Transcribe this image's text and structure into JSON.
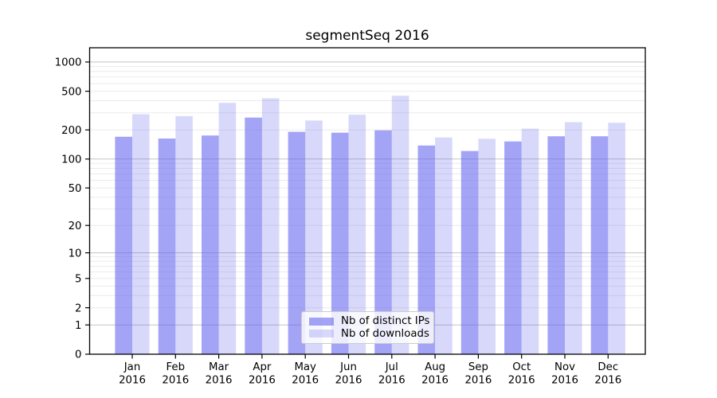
{
  "chart_data": {
    "type": "bar",
    "title": "segmentSeq 2016",
    "categories": [
      "Jan",
      "Feb",
      "Mar",
      "Apr",
      "May",
      "Jun",
      "Jul",
      "Aug",
      "Sep",
      "Oct",
      "Nov",
      "Dec"
    ],
    "category_year": "2016",
    "series": [
      {
        "name": "Nb of distinct IPs",
        "fill": "rgba(98,98,239,0.58)",
        "values": [
          170,
          163,
          175,
          268,
          191,
          187,
          198,
          138,
          121,
          152,
          172,
          172
        ]
      },
      {
        "name": "Nb of downloads",
        "fill": "rgba(98,98,239,0.25)",
        "values": [
          290,
          277,
          380,
          423,
          250,
          287,
          450,
          167,
          162,
          206,
          240,
          237
        ]
      }
    ],
    "yscale": "log1p",
    "ylim": [
      0,
      1400
    ],
    "yticks": [
      0,
      1,
      2,
      5,
      10,
      20,
      50,
      100,
      200,
      500,
      1000
    ],
    "grid": "on",
    "legend_position": "lower center",
    "colors": {
      "bar_base": "#6262ef",
      "grid_major": "#c3c3c3",
      "grid_minor": "#ebebeb",
      "spine": "#000000",
      "text": "#000000",
      "legend_border": "#cccccc",
      "legend_bg": "rgba(255,255,255,0.8)",
      "background": "#ffffff"
    }
  }
}
